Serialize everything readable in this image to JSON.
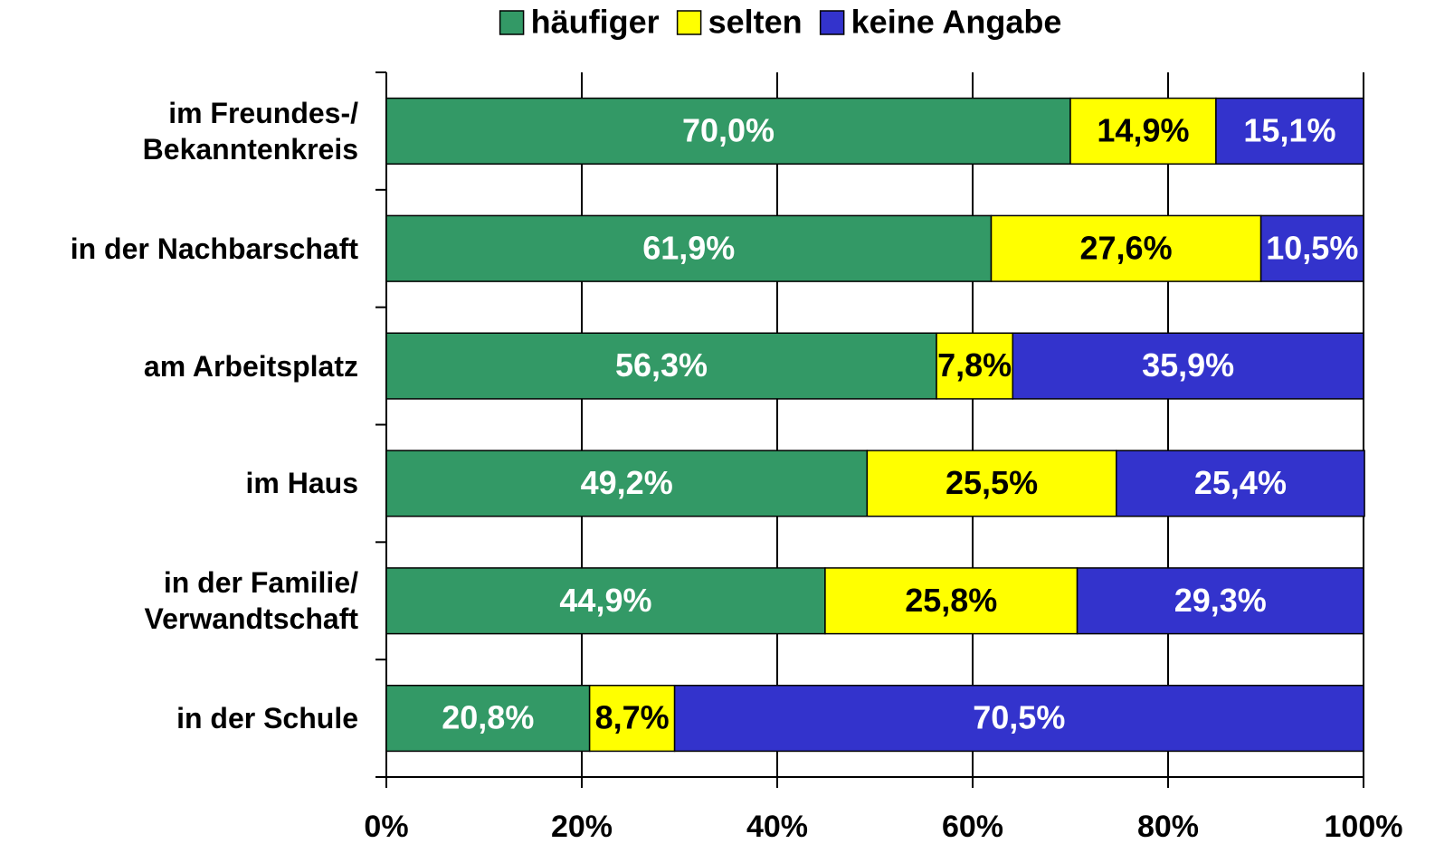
{
  "chart_data": {
    "type": "stacked-bar-horizontal",
    "categories": [
      "im Freundes-/\nBekanntenkreis",
      "in der Nachbarschaft",
      "am Arbeitsplatz",
      "im Haus",
      "in der Familie/\nVerwandtschaft",
      "in der Schule"
    ],
    "series": [
      {
        "name": "häufiger",
        "color": "#339966",
        "label_color": "#ffffff",
        "values": [
          70.0,
          61.9,
          56.3,
          49.2,
          44.9,
          20.8
        ],
        "value_labels": [
          "70,0%",
          "61,9%",
          "56,3%",
          "49,2%",
          "44,9%",
          "20,8%"
        ]
      },
      {
        "name": "selten",
        "color": "#ffff00",
        "label_color": "#000000",
        "values": [
          14.9,
          27.6,
          7.8,
          25.5,
          25.8,
          8.7
        ],
        "value_labels": [
          "14,9%",
          "27,6%",
          "7,8%",
          "25,5%",
          "25,8%",
          "8,7%"
        ]
      },
      {
        "name": "keine Angabe",
        "color": "#3333cc",
        "label_color": "#ffffff",
        "values": [
          15.1,
          10.5,
          35.9,
          25.4,
          29.3,
          70.5
        ],
        "value_labels": [
          "15,1%",
          "10,5%",
          "35,9%",
          "25,4%",
          "29,3%",
          "70,5%"
        ]
      }
    ],
    "xlim": [
      0,
      100
    ],
    "xticks": [
      {
        "value": 0,
        "label": "0%"
      },
      {
        "value": 20,
        "label": "20%"
      },
      {
        "value": 40,
        "label": "40%"
      },
      {
        "value": 60,
        "label": "60%"
      },
      {
        "value": 80,
        "label": "80%"
      },
      {
        "value": 100,
        "label": "100%"
      }
    ],
    "grid": true,
    "legend": "top"
  }
}
